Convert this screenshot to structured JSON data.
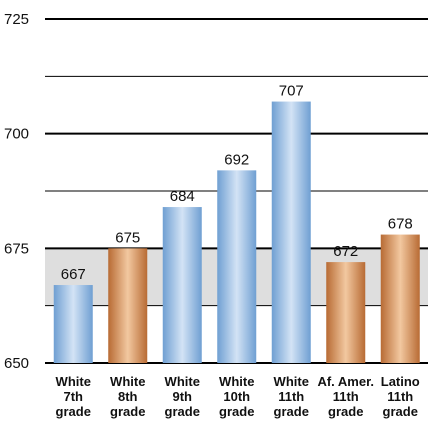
{
  "chart_data": {
    "type": "bar",
    "categories": [
      [
        "White",
        "7th",
        "grade"
      ],
      [
        "White",
        "8th",
        "grade"
      ],
      [
        "White",
        "9th",
        "grade"
      ],
      [
        "White",
        "10th",
        "grade"
      ],
      [
        "White",
        "11th",
        "grade"
      ],
      [
        "Af. Amer.",
        "11th",
        "grade"
      ],
      [
        "Latino",
        "11th",
        "grade"
      ]
    ],
    "values": [
      667,
      675,
      684,
      692,
      707,
      672,
      678
    ],
    "data_labels": [
      "667",
      "675",
      "684",
      "692",
      "707",
      "672",
      "678"
    ],
    "bar_styles": [
      "blue",
      "orange",
      "blue",
      "blue",
      "blue",
      "orange",
      "orange"
    ],
    "ylim": [
      650,
      725
    ],
    "yticks": [
      650,
      675,
      700,
      725
    ],
    "ytick_labels": [
      "650",
      "675",
      "700",
      "725"
    ],
    "gridlines": [
      650,
      662.5,
      675,
      687.5,
      700,
      712.5,
      725
    ],
    "shaded_band": [
      662.5,
      675
    ],
    "title": "",
    "xlabel": "",
    "ylabel": "",
    "grid": true,
    "legend": "none",
    "colors": {
      "blue_light": "#d3e3f5",
      "blue_dark": "#6f9fd2",
      "orange_light": "#f2c8a0",
      "orange_dark": "#b86b34",
      "band": "#dedede",
      "axis": "#000000"
    }
  }
}
